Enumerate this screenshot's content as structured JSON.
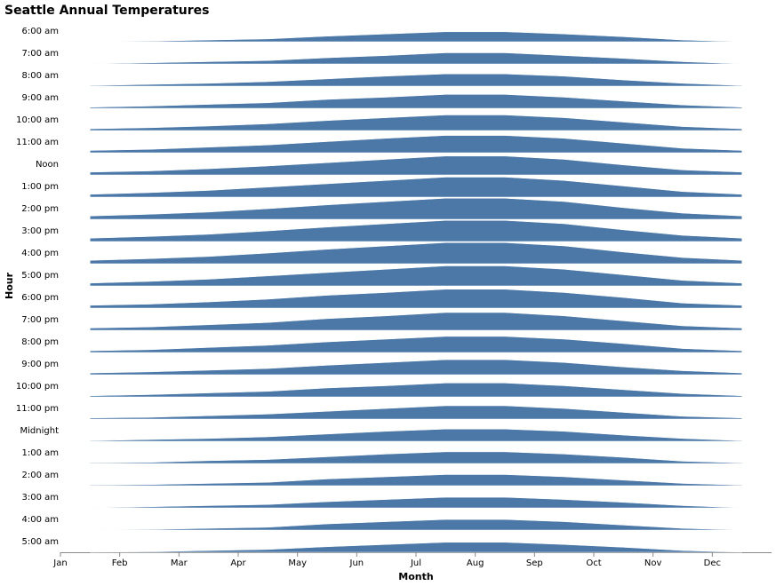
{
  "chart_data": {
    "type": "ridgeline",
    "title": "Seattle Annual Temperatures",
    "xlabel": "Month",
    "ylabel": "Hour",
    "categories": [
      "Jan",
      "Feb",
      "Mar",
      "Apr",
      "May",
      "Jun",
      "Jul",
      "Aug",
      "Sep",
      "Oct",
      "Nov",
      "Dec"
    ],
    "ylim": [
      38,
      78
    ],
    "color": "#4c78a8",
    "series": [
      {
        "name": "6:00 am",
        "values": [
          38,
          39,
          41,
          43,
          48,
          52,
          56,
          56,
          52,
          47,
          41,
          38
        ]
      },
      {
        "name": "7:00 am",
        "values": [
          38,
          40,
          42,
          44,
          49,
          53,
          58,
          58,
          53,
          48,
          42,
          38
        ]
      },
      {
        "name": "8:00 am",
        "values": [
          39,
          41,
          43,
          46,
          51,
          56,
          60,
          60,
          56,
          49,
          43,
          39
        ]
      },
      {
        "name": "9:00 am",
        "values": [
          40,
          42,
          45,
          48,
          54,
          58,
          63,
          63,
          58,
          51,
          44,
          40
        ]
      },
      {
        "name": "10:00 am",
        "values": [
          41,
          43,
          46,
          50,
          56,
          61,
          66,
          66,
          61,
          53,
          45,
          41
        ]
      },
      {
        "name": "11:00 am",
        "values": [
          42,
          44,
          48,
          52,
          58,
          64,
          69,
          69,
          64,
          55,
          46,
          42
        ]
      },
      {
        "name": "Noon",
        "values": [
          43,
          45,
          49,
          54,
          60,
          66,
          72,
          72,
          66,
          56,
          47,
          43
        ]
      },
      {
        "name": "1:00 pm",
        "values": [
          43,
          46,
          50,
          56,
          62,
          68,
          74,
          74,
          68,
          58,
          48,
          43
        ]
      },
      {
        "name": "2:00 pm",
        "values": [
          44,
          47,
          51,
          57,
          64,
          70,
          76,
          76,
          70,
          59,
          49,
          44
        ]
      },
      {
        "name": "3:00 pm",
        "values": [
          44,
          47,
          51,
          57,
          64,
          70,
          76,
          76,
          70,
          59,
          49,
          44
        ]
      },
      {
        "name": "4:00 pm",
        "values": [
          44,
          47,
          51,
          57,
          64,
          70,
          76,
          76,
          70,
          59,
          49,
          44
        ]
      },
      {
        "name": "5:00 pm",
        "values": [
          43,
          46,
          50,
          56,
          62,
          68,
          74,
          74,
          68,
          58,
          48,
          43
        ]
      },
      {
        "name": "6:00 pm",
        "values": [
          43,
          45,
          49,
          54,
          61,
          66,
          72,
          72,
          66,
          57,
          47,
          43
        ]
      },
      {
        "name": "7:00 pm",
        "values": [
          42,
          44,
          48,
          52,
          59,
          64,
          70,
          70,
          64,
          55,
          46,
          42
        ]
      },
      {
        "name": "8:00 pm",
        "values": [
          41,
          43,
          47,
          51,
          57,
          62,
          67,
          67,
          62,
          54,
          45,
          41
        ]
      },
      {
        "name": "9:00 pm",
        "values": [
          41,
          43,
          46,
          49,
          55,
          60,
          65,
          65,
          60,
          52,
          45,
          41
        ]
      },
      {
        "name": "10:00 pm",
        "values": [
          40,
          42,
          45,
          48,
          54,
          58,
          63,
          63,
          58,
          51,
          44,
          40
        ]
      },
      {
        "name": "11:00 pm",
        "values": [
          40,
          41,
          44,
          47,
          52,
          57,
          62,
          62,
          57,
          50,
          43,
          40
        ]
      },
      {
        "name": "Midnight",
        "values": [
          39,
          41,
          43,
          46,
          51,
          56,
          60,
          60,
          56,
          49,
          43,
          39
        ]
      },
      {
        "name": "1:00 am",
        "values": [
          39,
          40,
          43,
          45,
          50,
          55,
          59,
          59,
          55,
          49,
          42,
          39
        ]
      },
      {
        "name": "2:00 am",
        "values": [
          39,
          40,
          42,
          44,
          50,
          54,
          58,
          58,
          54,
          48,
          42,
          39
        ]
      },
      {
        "name": "3:00 am",
        "values": [
          38,
          40,
          42,
          44,
          49,
          53,
          57,
          57,
          53,
          48,
          42,
          38
        ]
      },
      {
        "name": "4:00 am",
        "values": [
          38,
          39,
          41,
          43,
          49,
          53,
          57,
          57,
          53,
          47,
          41,
          38
        ]
      },
      {
        "name": "5:00 am",
        "values": [
          38,
          39,
          41,
          43,
          48,
          52,
          56,
          56,
          52,
          47,
          41,
          38
        ]
      }
    ]
  }
}
